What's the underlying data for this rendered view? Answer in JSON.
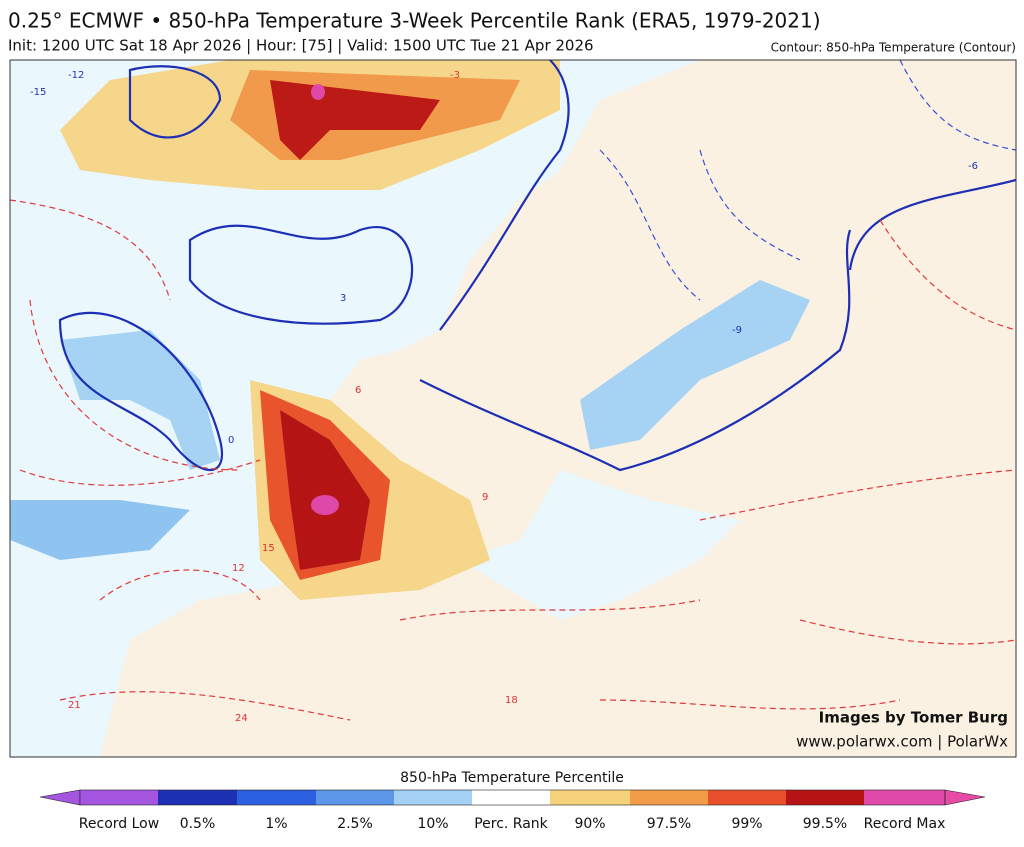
{
  "header": {
    "title": "0.25° ECMWF • 850-hPa Temperature 3-Week Percentile Rank (ERA5, 1979-2021)",
    "subtitle": "Init: 1200 UTC Sat 18 Apr 2026 | Hour: [75] | Valid: 1500 UTC Tue 21 Apr 2026",
    "contour_note": "Contour: 850-hPa Temperature (Contour)"
  },
  "map": {
    "contour_labels": [
      "-15",
      "-12",
      "-3",
      "3",
      "0",
      "-6",
      "-9",
      "6",
      "9",
      "12",
      "15",
      "18",
      "21",
      "24"
    ]
  },
  "credits": [
    "Images by Tomer Burg",
    "www.polarwx.com | PolarWx"
  ],
  "colorbar": {
    "title": "850-hPa Temperature Percentile",
    "labels": [
      "Record Low",
      "0.5%",
      "1%",
      "2.5%",
      "10%",
      "Perc. Rank",
      "90%",
      "97.5%",
      "99%",
      "99.5%",
      "Record Max"
    ]
  }
}
